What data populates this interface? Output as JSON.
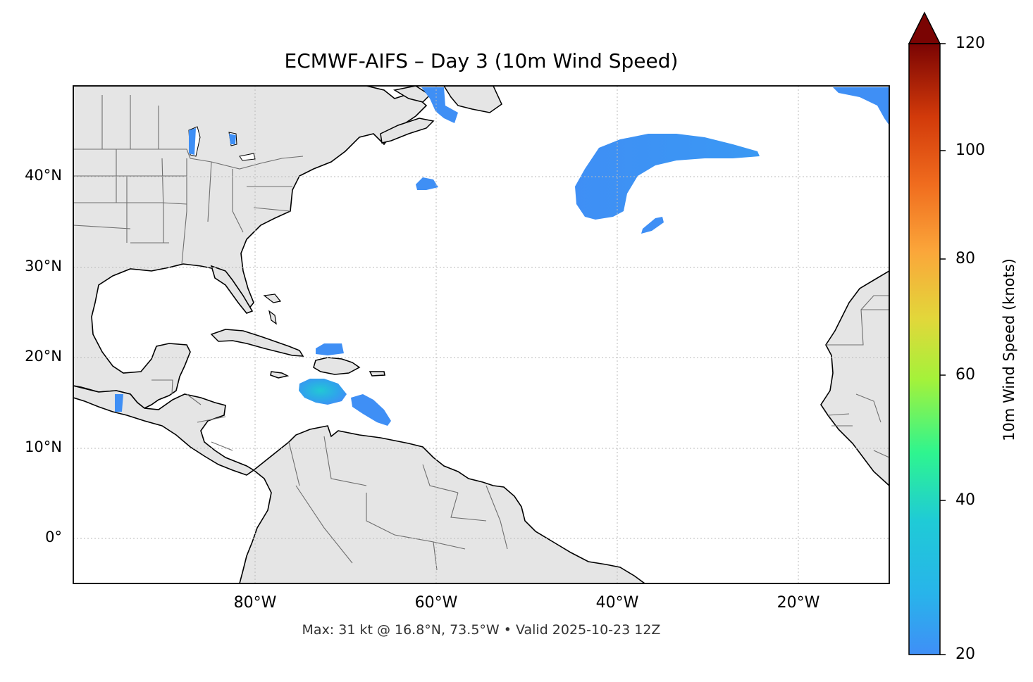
{
  "title": "ECMWF-AIFS – Day 3 (10m Wind Speed)",
  "footer": "Max: 31 kt @ 16.8°N, 73.5°W • Valid 2025-10-23 12Z",
  "map": {
    "lat_labels": [
      "40°N",
      "30°N",
      "20°N",
      "10°N",
      "0°"
    ],
    "lon_labels": [
      "80°W",
      "60°W",
      "40°W",
      "20°W"
    ],
    "colors": {
      "land": "#e5e5e5",
      "ocean": "#ffffff",
      "coast": "#000000",
      "borders": "#6e6e6e",
      "grid": "#bbbbbb"
    },
    "wind_swaths": [
      {
        "name": "mid-atlantic-jet",
        "color": "#3f8ff5"
      },
      {
        "name": "hispaniola-jamaica-max",
        "color": "#2bbfd6"
      },
      {
        "name": "lesser-antilles-band",
        "color": "#3f8ff5"
      },
      {
        "name": "newfoundland-gale",
        "color": "#3f8ff5"
      }
    ]
  },
  "colorbar": {
    "label": "10m Wind Speed (knots)",
    "ticks": [
      "120",
      "100",
      "80",
      "60",
      "40",
      "20"
    ],
    "colormap": [
      "#3f8ff7",
      "#1fcbd6",
      "#2ef58f",
      "#a4f23a",
      "#e2d73a",
      "#fba63a",
      "#f06c1e",
      "#d23a0a",
      "#a91806",
      "#7a0403"
    ]
  }
}
